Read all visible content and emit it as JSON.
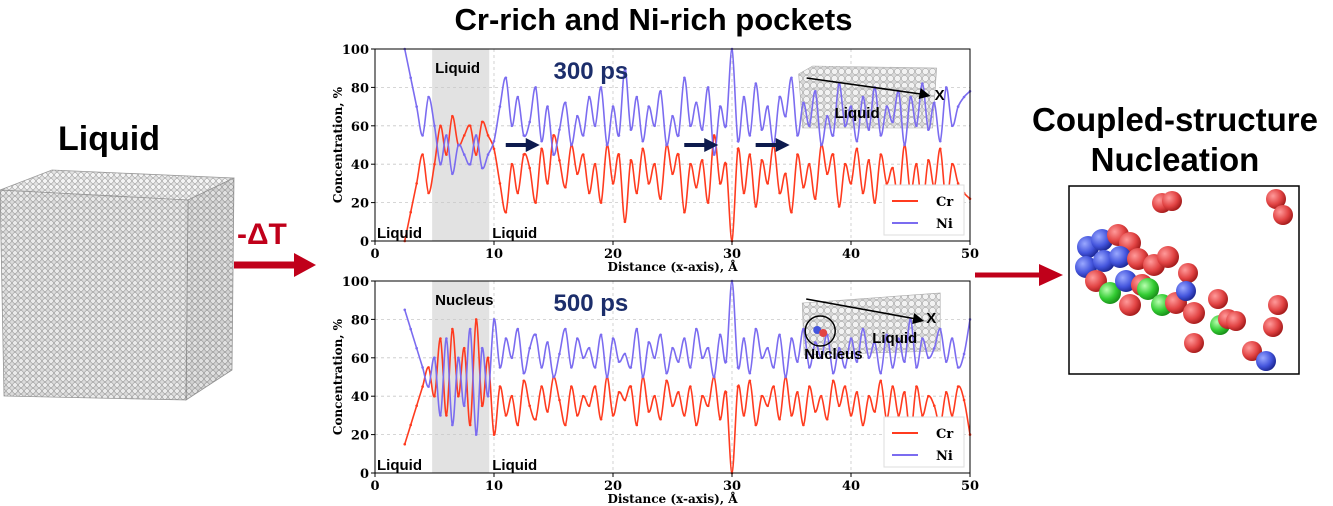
{
  "title": "Cr-rich and Ni-rich pockets",
  "left_panel": {
    "label": "Liquid",
    "arrow_label": "-ΔT"
  },
  "right_panel": {
    "title_line1": "Coupled-structure",
    "title_line2": "Nucleation"
  },
  "colors": {
    "cr": "#ff3b1f",
    "ni": "#7b6cf0",
    "arrow": "#c0001a",
    "time_text": "#1c2e6b",
    "atom_red": "#e24444",
    "atom_blue": "#4455dd",
    "atom_green": "#33cc33"
  },
  "chart_data": [
    {
      "type": "line",
      "time_label": "300 ps",
      "xlabel": "Distance (x-axis), Å",
      "ylabel": "Concentration, %",
      "xlim": [
        0,
        50
      ],
      "ylim": [
        0,
        100
      ],
      "x_ticks": [
        "0",
        "10",
        "20",
        "30",
        "40",
        "50"
      ],
      "y_ticks": [
        "0",
        "20",
        "40",
        "60",
        "80",
        "100"
      ],
      "shaded_region": [
        4.8,
        9.6
      ],
      "region_labels": {
        "left_bottom": "Liquid",
        "shaded_top": "Liquid",
        "right_bottom": "Liquid"
      },
      "inset_labels": {
        "axis": "X",
        "region": "Liquid"
      },
      "arrows_at_x": [
        12.5,
        27.5,
        33.5
      ],
      "legend": [
        "Cr",
        "Ni"
      ],
      "series": [
        {
          "name": "Cr",
          "x": [
            2.5,
            3,
            3.5,
            4,
            4.5,
            5,
            5.5,
            6,
            6.5,
            7,
            7.5,
            8,
            8.5,
            9,
            9.5,
            10,
            10.5,
            11,
            11.5,
            12,
            12.5,
            13,
            13.5,
            14,
            14.5,
            15,
            15.5,
            16,
            16.5,
            17,
            17.5,
            18,
            18.5,
            19,
            19.5,
            20,
            20.5,
            21,
            21.5,
            22,
            22.5,
            23,
            23.5,
            24,
            24.5,
            25,
            25.5,
            26,
            26.5,
            27,
            27.5,
            28,
            28.5,
            29,
            29.5,
            30,
            30.5,
            31,
            31.5,
            32,
            32.5,
            33,
            33.5,
            34,
            34.5,
            35,
            35.5,
            36,
            36.5,
            37,
            37.5,
            38,
            38.5,
            39,
            39.5,
            40,
            40.5,
            41,
            41.5,
            42,
            42.5,
            43,
            43.5,
            44,
            44.5,
            45,
            45.5,
            46,
            46.5,
            47,
            47.5,
            48,
            48.5,
            49,
            49.5,
            50
          ],
          "values": [
            0,
            15,
            30,
            45,
            25,
            40,
            60,
            45,
            65,
            50,
            55,
            60,
            45,
            62,
            55,
            48,
            30,
            15,
            40,
            25,
            45,
            38,
            20,
            48,
            30,
            55,
            42,
            28,
            50,
            35,
            45,
            25,
            40,
            20,
            50,
            30,
            45,
            10,
            42,
            25,
            48,
            30,
            40,
            22,
            50,
            35,
            45,
            15,
            40,
            28,
            42,
            20,
            55,
            30,
            40,
            0,
            48,
            25,
            45,
            18,
            42,
            30,
            50,
            25,
            35,
            15,
            45,
            28,
            40,
            22,
            50,
            35,
            45,
            18,
            40,
            30,
            48,
            25,
            42,
            20,
            45,
            30,
            38,
            22,
            50,
            25,
            40,
            18,
            42,
            28,
            48,
            20,
            40,
            30,
            25,
            22
          ]
        },
        {
          "name": "Ni",
          "x": [
            2.5,
            3,
            3.5,
            4,
            4.5,
            5,
            5.5,
            6,
            6.5,
            7,
            7.5,
            8,
            8.5,
            9,
            9.5,
            10,
            10.5,
            11,
            11.5,
            12,
            12.5,
            13,
            13.5,
            14,
            14.5,
            15,
            15.5,
            16,
            16.5,
            17,
            17.5,
            18,
            18.5,
            19,
            19.5,
            20,
            20.5,
            21,
            21.5,
            22,
            22.5,
            23,
            23.5,
            24,
            24.5,
            25,
            25.5,
            26,
            26.5,
            27,
            27.5,
            28,
            28.5,
            29,
            29.5,
            30,
            30.5,
            31,
            31.5,
            32,
            32.5,
            33,
            33.5,
            34,
            34.5,
            35,
            35.5,
            36,
            36.5,
            37,
            37.5,
            38,
            38.5,
            39,
            39.5,
            40,
            40.5,
            41,
            41.5,
            42,
            42.5,
            43,
            43.5,
            44,
            44.5,
            45,
            45.5,
            46,
            46.5,
            47,
            47.5,
            48,
            48.5,
            49,
            49.5,
            50
          ],
          "values": [
            100,
            85,
            70,
            55,
            75,
            60,
            40,
            55,
            35,
            50,
            45,
            40,
            55,
            38,
            45,
            52,
            70,
            85,
            60,
            75,
            55,
            62,
            80,
            52,
            70,
            45,
            58,
            72,
            50,
            65,
            55,
            75,
            60,
            80,
            50,
            70,
            55,
            90,
            58,
            75,
            52,
            70,
            60,
            78,
            50,
            65,
            55,
            85,
            60,
            72,
            58,
            80,
            45,
            70,
            60,
            100,
            52,
            75,
            55,
            82,
            58,
            70,
            50,
            75,
            65,
            85,
            55,
            72,
            60,
            78,
            50,
            65,
            55,
            82,
            60,
            70,
            52,
            75,
            58,
            80,
            55,
            70,
            62,
            78,
            50,
            75,
            60,
            82,
            58,
            72,
            52,
            80,
            60,
            70,
            75,
            78
          ]
        }
      ]
    },
    {
      "type": "line",
      "time_label": "500 ps",
      "xlabel": "Distance (x-axis), Å",
      "ylabel": "Concentration, %",
      "xlim": [
        0,
        50
      ],
      "ylim": [
        0,
        100
      ],
      "x_ticks": [
        "0",
        "10",
        "20",
        "30",
        "40",
        "50"
      ],
      "y_ticks": [
        "0",
        "20",
        "40",
        "60",
        "80",
        "100"
      ],
      "shaded_region": [
        4.8,
        9.6
      ],
      "region_labels": {
        "left_bottom": "Liquid",
        "shaded_top": "Nucleus",
        "right_bottom": "Liquid"
      },
      "inset_labels": {
        "axis": "X",
        "region": "Liquid",
        "nucleus": "Nucleus"
      },
      "legend": [
        "Cr",
        "Ni"
      ],
      "series": [
        {
          "name": "Cr",
          "x": [
            2.5,
            3,
            3.5,
            4,
            4.5,
            5,
            5.5,
            6,
            6.5,
            7,
            7.5,
            8,
            8.5,
            9,
            9.5,
            10,
            10.5,
            11,
            11.5,
            12,
            12.5,
            13,
            13.5,
            14,
            14.5,
            15,
            15.5,
            16,
            16.5,
            17,
            17.5,
            18,
            18.5,
            19,
            19.5,
            20,
            20.5,
            21,
            21.5,
            22,
            22.5,
            23,
            23.5,
            24,
            24.5,
            25,
            25.5,
            26,
            26.5,
            27,
            27.5,
            28,
            28.5,
            29,
            29.5,
            30,
            30.5,
            31,
            31.5,
            32,
            32.5,
            33,
            33.5,
            34,
            34.5,
            35,
            35.5,
            36,
            36.5,
            37,
            37.5,
            38,
            38.5,
            39,
            39.5,
            40,
            40.5,
            41,
            41.5,
            42,
            42.5,
            43,
            43.5,
            44,
            44.5,
            45,
            45.5,
            46,
            46.5,
            47,
            47.5,
            48,
            48.5,
            49,
            49.5,
            50
          ],
          "values": [
            15,
            25,
            35,
            45,
            55,
            40,
            70,
            30,
            75,
            40,
            65,
            25,
            80,
            35,
            60,
            20,
            45,
            30,
            40,
            25,
            48,
            35,
            28,
            45,
            32,
            50,
            38,
            25,
            45,
            30,
            40,
            35,
            45,
            28,
            50,
            30,
            42,
            38,
            45,
            25,
            50,
            32,
            40,
            28,
            48,
            35,
            42,
            30,
            45,
            25,
            40,
            35,
            50,
            28,
            42,
            0,
            45,
            30,
            48,
            25,
            40,
            35,
            45,
            28,
            50,
            30,
            42,
            25,
            45,
            32,
            40,
            28,
            48,
            35,
            45,
            30,
            42,
            25,
            40,
            32,
            48,
            28,
            45,
            30,
            42,
            20,
            45,
            30,
            40,
            35,
            25,
            42,
            30,
            45,
            38,
            20
          ]
        },
        {
          "name": "Ni",
          "x": [
            2.5,
            3,
            3.5,
            4,
            4.5,
            5,
            5.5,
            6,
            6.5,
            7,
            7.5,
            8,
            8.5,
            9,
            9.5,
            10,
            10.5,
            11,
            11.5,
            12,
            12.5,
            13,
            13.5,
            14,
            14.5,
            15,
            15.5,
            16,
            16.5,
            17,
            17.5,
            18,
            18.5,
            19,
            19.5,
            20,
            20.5,
            21,
            21.5,
            22,
            22.5,
            23,
            23.5,
            24,
            24.5,
            25,
            25.5,
            26,
            26.5,
            27,
            27.5,
            28,
            28.5,
            29,
            29.5,
            30,
            30.5,
            31,
            31.5,
            32,
            32.5,
            33,
            33.5,
            34,
            34.5,
            35,
            35.5,
            36,
            36.5,
            37,
            37.5,
            38,
            38.5,
            39,
            39.5,
            40,
            40.5,
            41,
            41.5,
            42,
            42.5,
            43,
            43.5,
            44,
            44.5,
            45,
            45.5,
            46,
            46.5,
            47,
            47.5,
            48,
            48.5,
            49,
            49.5,
            50
          ],
          "values": [
            85,
            75,
            65,
            55,
            45,
            60,
            30,
            70,
            25,
            60,
            35,
            75,
            20,
            65,
            40,
            80,
            55,
            70,
            60,
            75,
            52,
            65,
            72,
            55,
            68,
            50,
            62,
            75,
            55,
            70,
            60,
            65,
            55,
            72,
            50,
            70,
            58,
            62,
            55,
            75,
            50,
            68,
            60,
            72,
            52,
            65,
            58,
            70,
            55,
            75,
            60,
            65,
            50,
            72,
            58,
            100,
            55,
            70,
            52,
            75,
            60,
            65,
            55,
            72,
            50,
            70,
            58,
            75,
            55,
            68,
            60,
            72,
            52,
            65,
            55,
            70,
            58,
            75,
            60,
            68,
            52,
            72,
            55,
            70,
            58,
            80,
            55,
            70,
            60,
            65,
            75,
            58,
            70,
            55,
            62,
            80
          ]
        }
      ]
    }
  ]
}
